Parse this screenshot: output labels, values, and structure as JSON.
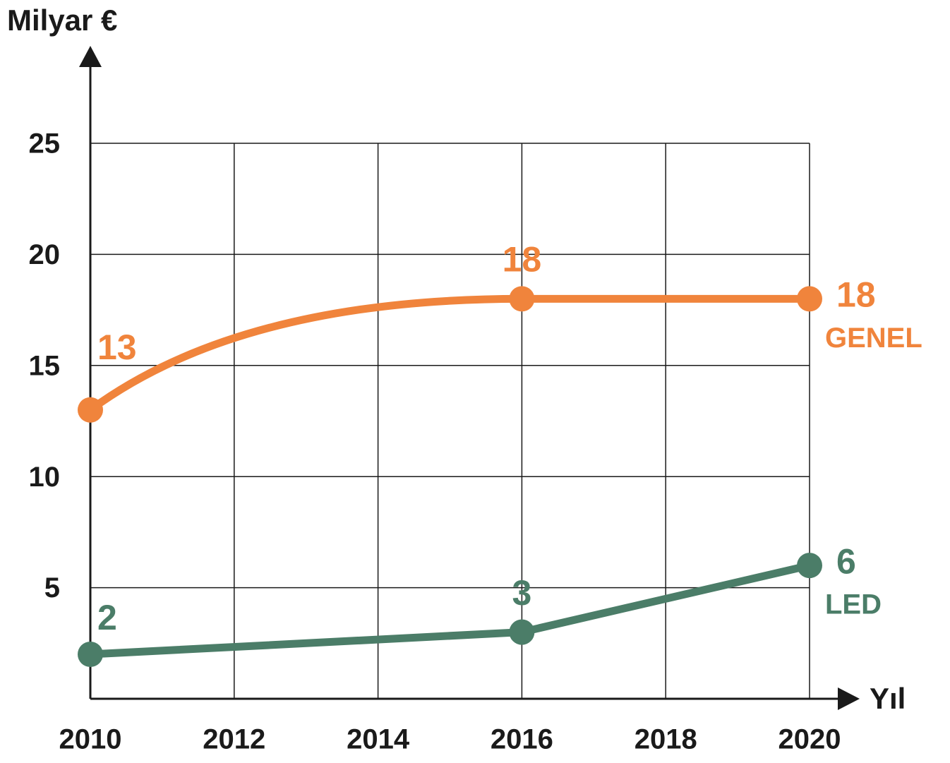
{
  "chart_data": {
    "type": "line",
    "y_label": "Milyar €",
    "x_label": "Yıl",
    "x": [
      2010,
      2016,
      2020
    ],
    "series": [
      {
        "name": "GENEL",
        "color": "#f0843c",
        "values": [
          13,
          18,
          18
        ],
        "smooth": true
      },
      {
        "name": "LED",
        "color": "#4b7d68",
        "values": [
          2,
          3,
          6
        ],
        "smooth": false
      }
    ],
    "xlim": [
      2010,
      2020
    ],
    "xticks": [
      2010,
      2012,
      2014,
      2016,
      2018,
      2020
    ],
    "ylim": [
      0,
      25
    ],
    "yticks": [
      5,
      10,
      15,
      20,
      25
    ],
    "grid": true
  }
}
